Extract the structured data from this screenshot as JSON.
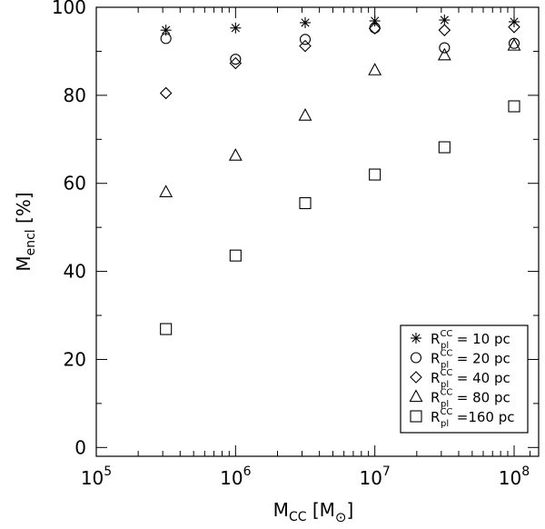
{
  "chart_data": {
    "type": "scatter",
    "xlabel": {
      "main": "M",
      "sub": "CC",
      "unit_open": "[M",
      "unit_sub": "⊙",
      "unit_close": "]"
    },
    "ylabel": {
      "main": "M",
      "sub": "encl",
      "unit": "[%]"
    },
    "xscale": "log",
    "xlim": [
      100000,
      150000000
    ],
    "ylim": [
      -2,
      100
    ],
    "grid": false,
    "legend_position": "bottom-right",
    "x_ticks": [
      {
        "value": 100000,
        "base": "10",
        "exp": "5"
      },
      {
        "value": 1000000,
        "base": "10",
        "exp": "6"
      },
      {
        "value": 10000000,
        "base": "10",
        "exp": "7"
      },
      {
        "value": 100000000,
        "base": "10",
        "exp": "8"
      }
    ],
    "y_ticks": [
      {
        "value": 0,
        "label": "0"
      },
      {
        "value": 20,
        "label": "20"
      },
      {
        "value": 40,
        "label": "40"
      },
      {
        "value": 60,
        "label": "60"
      },
      {
        "value": 80,
        "label": "80"
      },
      {
        "value": 100,
        "label": "100"
      }
    ],
    "x": [
      316228,
      1000000,
      3162278,
      10000000,
      31622777,
      100000000
    ],
    "series": [
      {
        "name": "R_pl^CC = 10 pc",
        "marker": "asterisk",
        "values": [
          94.8,
          95.3,
          96.5,
          96.9,
          97.1,
          96.7
        ]
      },
      {
        "name": "R_pl^CC = 20 pc",
        "marker": "circle",
        "values": [
          92.9,
          88.2,
          92.7,
          95.3,
          90.8,
          91.8
        ]
      },
      {
        "name": "R_pl^CC = 40 pc",
        "marker": "diamond",
        "values": [
          80.5,
          87.3,
          91.2,
          95.2,
          94.8,
          95.5
        ]
      },
      {
        "name": "R_pl^CC = 80 pc",
        "marker": "triangle",
        "values": [
          58.0,
          66.3,
          75.4,
          85.7,
          89.1,
          91.3
        ]
      },
      {
        "name": "R_pl^CC = 160 pc",
        "marker": "square",
        "values": [
          26.9,
          43.6,
          55.5,
          62.0,
          68.2,
          77.5
        ]
      }
    ],
    "legend": [
      {
        "marker": "asterisk",
        "sym": "R",
        "sub": "pl",
        "sup": "CC",
        "text": " =  10  pc"
      },
      {
        "marker": "circle",
        "sym": "R",
        "sub": "pl",
        "sup": "CC",
        "text": " =  20  pc"
      },
      {
        "marker": "diamond",
        "sym": "R",
        "sub": "pl",
        "sup": "CC",
        "text": " =  40  pc"
      },
      {
        "marker": "triangle",
        "sym": "R",
        "sub": "pl",
        "sup": "CC",
        "text": " =  80  pc"
      },
      {
        "marker": "square",
        "sym": "R",
        "sub": "pl",
        "sup": "CC",
        "text": " =160  pc"
      }
    ]
  }
}
